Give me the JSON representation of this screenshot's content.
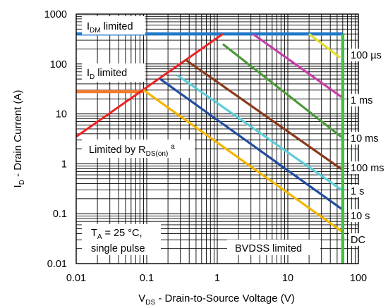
{
  "chart_data": {
    "type": "line",
    "scale": {
      "x": "log",
      "y": "log"
    },
    "xlim": [
      0.01,
      100
    ],
    "ylim": [
      0.01,
      1000
    ],
    "grid": true,
    "x_ticks": [
      "0.01",
      "0.1",
      "1",
      "10",
      "100"
    ],
    "y_ticks": [
      "0.01",
      "0.1",
      "1",
      "10",
      "100",
      "1000"
    ],
    "xlabel": {
      "main": "V",
      "sub": "DS",
      "rest": " - Drain-to-Source Voltage (V)"
    },
    "ylabel": {
      "main": "I",
      "sub": "D",
      "rest": " - Drain Current (A)"
    },
    "annotations": {
      "idm": {
        "main": "I",
        "sub": "DM",
        "rest": " limited"
      },
      "id": {
        "main": "I",
        "sub": "D",
        "rest": " limited"
      },
      "rds": {
        "main": "Limited by R",
        "sub": "DS(on)",
        "sup": "a"
      },
      "ta": {
        "main": "T",
        "sub": "A",
        "rest": " = 25 °C,"
      },
      "single_pulse": "single pulse",
      "bvdss": "BVDSS limited"
    },
    "series": [
      {
        "name": "100 µs",
        "color": "#e0e02a",
        "points": [
          [
            20,
            400
          ],
          [
            55,
            135
          ]
        ]
      },
      {
        "name": "1 ms",
        "color": "#c63fa8",
        "points": [
          [
            3.2,
            400
          ],
          [
            60,
            21
          ]
        ]
      },
      {
        "name": "10 ms",
        "color": "#4c9a3a",
        "points": [
          [
            1.2,
            250
          ],
          [
            60,
            3.3
          ]
        ]
      },
      {
        "name": "100 ms",
        "color": "#8b3a1a",
        "points": [
          [
            0.36,
            120
          ],
          [
            60,
            0.75
          ]
        ]
      },
      {
        "name": "1 s",
        "color": "#5dcdd8",
        "points": [
          [
            0.27,
            60
          ],
          [
            60,
            0.29
          ]
        ]
      },
      {
        "name": "10 s",
        "color": "#234ca0",
        "points": [
          [
            0.155,
            50
          ],
          [
            60,
            0.12
          ]
        ]
      },
      {
        "name": "DC",
        "color": "#f7b500",
        "points": [
          [
            0.09,
            30
          ],
          [
            60,
            0.043
          ]
        ]
      }
    ],
    "limit_lines": {
      "idm": {
        "color": "#1f78c8",
        "y": 400,
        "x": [
          0.01,
          60
        ]
      },
      "id": {
        "color": "#f07c30",
        "y": 28,
        "x": [
          0.01,
          0.09
        ]
      },
      "rds": {
        "color": "#ee2222",
        "points": [
          [
            0.01,
            3.5
          ],
          [
            1.2,
            400
          ]
        ]
      },
      "bvdss": {
        "color": "#44c044",
        "x": 60,
        "y": [
          0.01,
          400
        ]
      }
    }
  }
}
